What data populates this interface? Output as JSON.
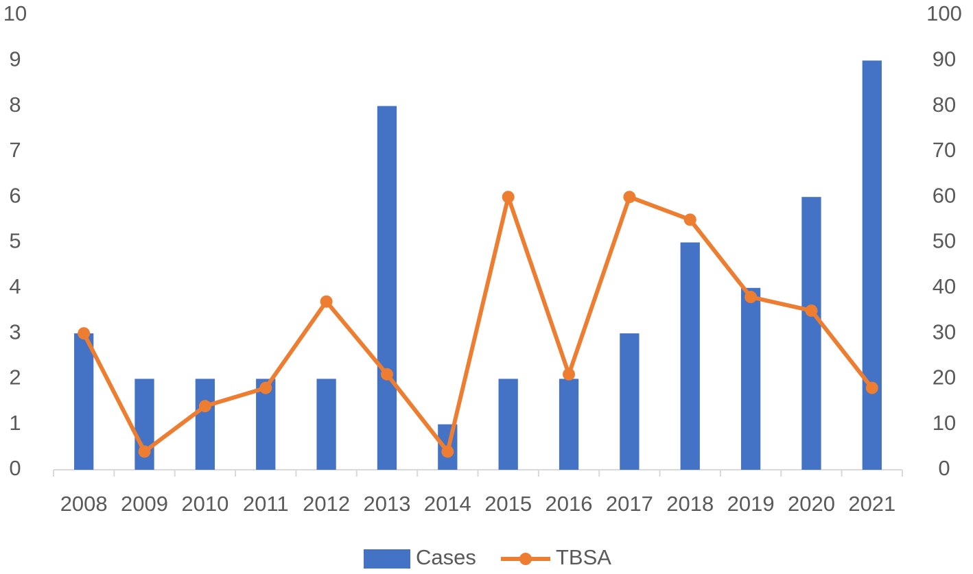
{
  "chart_data": {
    "type": "bar_line",
    "categories": [
      "2008",
      "2009",
      "2010",
      "2011",
      "2012",
      "2013",
      "2014",
      "2015",
      "2016",
      "2017",
      "2018",
      "2019",
      "2020",
      "2021"
    ],
    "series": [
      {
        "name": "Cases",
        "type": "bar",
        "color": "#4472c4",
        "values": [
          3,
          2,
          2,
          2,
          2,
          8,
          1,
          2,
          2,
          3,
          5,
          4,
          6,
          9
        ]
      },
      {
        "name": "TBSA",
        "type": "line",
        "axis": "y2",
        "color": "#ed7d31",
        "values": [
          30,
          4,
          14,
          18,
          37,
          21,
          4,
          60,
          21,
          60,
          55,
          38,
          35,
          18
        ]
      }
    ],
    "ylim": [
      0,
      10
    ],
    "yticks": [
      0,
      1,
      2,
      3,
      4,
      5,
      6,
      7,
      8,
      9,
      10
    ],
    "y2lim": [
      0,
      100
    ],
    "y2ticks": [
      0,
      10,
      20,
      30,
      40,
      50,
      60,
      70,
      80,
      90,
      100
    ],
    "grid": false,
    "legend": "bottom"
  }
}
